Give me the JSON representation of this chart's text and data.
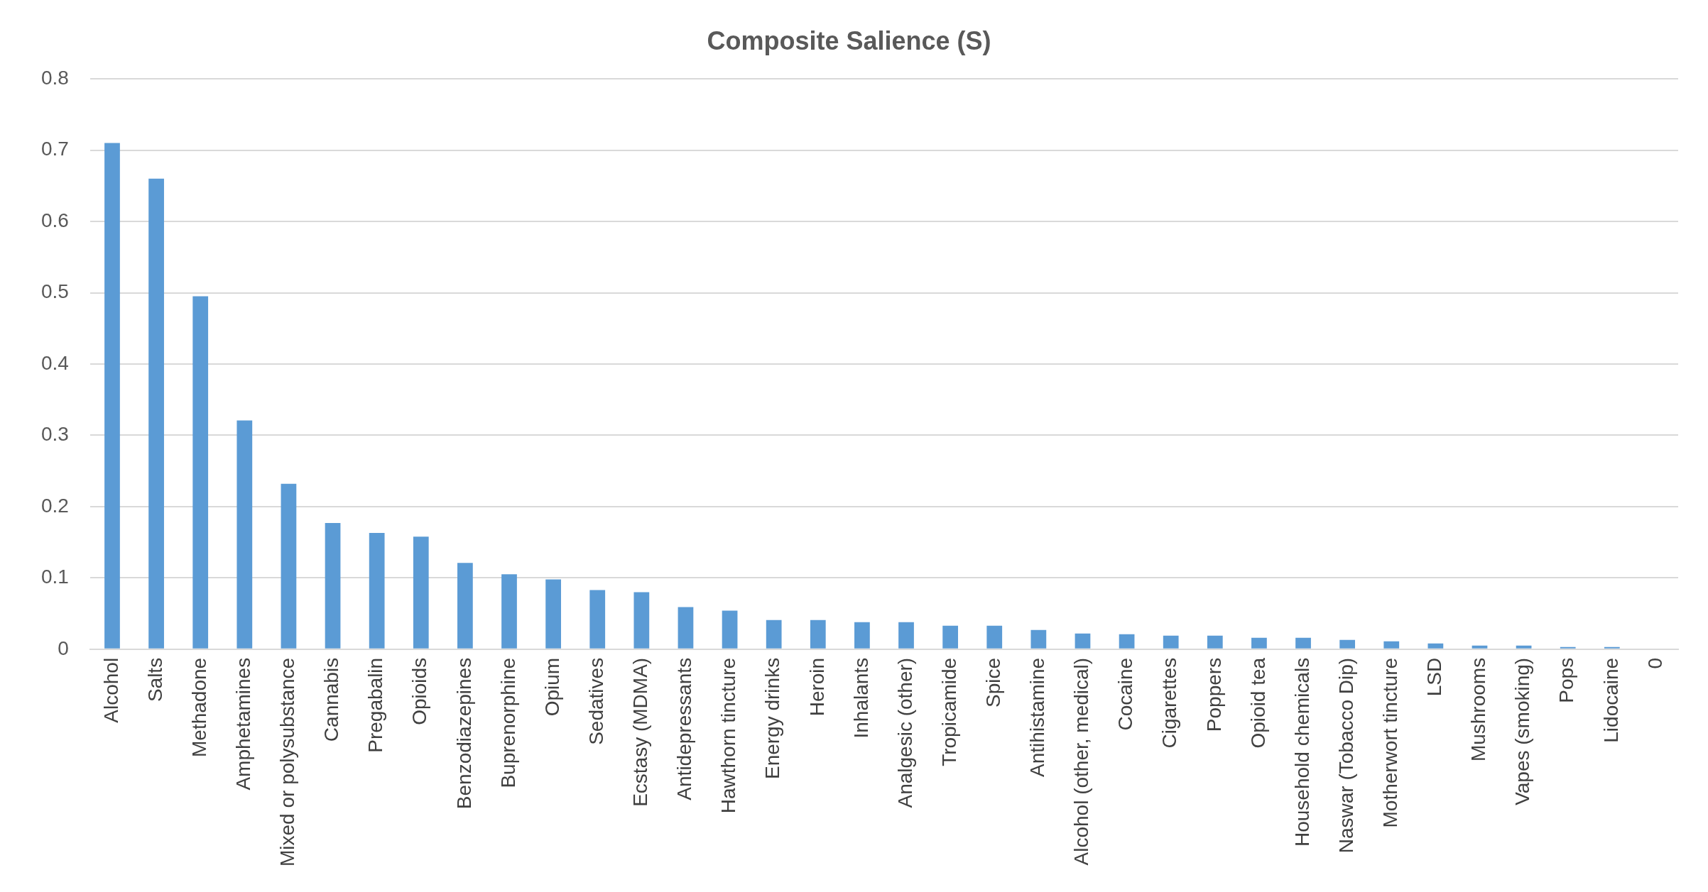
{
  "chart_data": {
    "type": "bar",
    "title": "Composite Salience (S)",
    "categories": [
      "Alcohol",
      "Salts",
      "Methadone",
      "Amphetamines",
      "Mixed or polysubstance",
      "Cannabis",
      "Pregabalin",
      "Opioids",
      "Benzodiazepines",
      "Buprenorphine",
      "Opium",
      "Sedatives",
      "Ecstasy (MDMA)",
      "Antidepressants",
      "Hawthorn tincture",
      "Energy drinks",
      "Heroin",
      "Inhalants",
      "Analgesic (other)",
      "Tropicamide",
      "Spice",
      "Antihistamine",
      "Alcohol (other, medical)",
      "Cocaine",
      "Cigarettes",
      "Poppers",
      "Opioid tea",
      "Household chemicals",
      "Naswar (Tobacco Dip)",
      "Motherwort tincture",
      "LSD",
      "Mushrooms",
      "Vapes (smoking)",
      "Pops",
      "Lidocaine",
      "0"
    ],
    "values": [
      0.71,
      0.66,
      0.495,
      0.321,
      0.232,
      0.177,
      0.163,
      0.158,
      0.121,
      0.105,
      0.098,
      0.083,
      0.08,
      0.059,
      0.054,
      0.041,
      0.041,
      0.038,
      0.038,
      0.033,
      0.033,
      0.027,
      0.022,
      0.021,
      0.019,
      0.019,
      0.016,
      0.016,
      0.013,
      0.011,
      0.008,
      0.005,
      0.005,
      0.003,
      0.003,
      0
    ],
    "color": "#5b9bd5",
    "ylim": [
      0,
      0.8
    ],
    "yticks": [
      0,
      0.1,
      0.2,
      0.3,
      0.4,
      0.5,
      0.6,
      0.7,
      0.8
    ],
    "grid": "y",
    "legend": false
  }
}
